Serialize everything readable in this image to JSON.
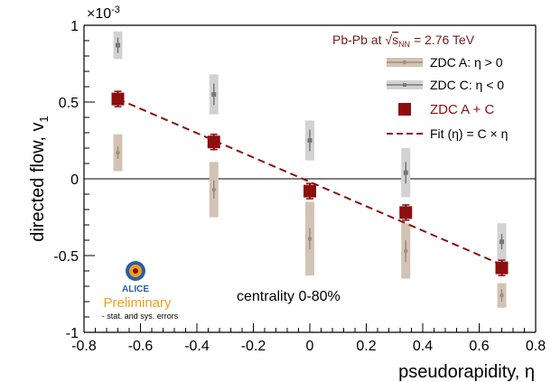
{
  "chart_data": {
    "type": "scatter",
    "xlabel": "pseudorapidity, η",
    "ylabel": "directed flow, v",
    "ylabel_sub": "1",
    "y_multiplier": "×10",
    "y_multiplier_exp": "-3",
    "xlim": [
      -0.8,
      0.8
    ],
    "ylim": [
      -1,
      1
    ],
    "x_ticks": [
      -0.8,
      -0.6,
      -0.4,
      -0.2,
      0,
      0.2,
      0.4,
      0.6,
      0.8
    ],
    "x_tick_labels": [
      "-0.8",
      "-0.6",
      "-0.4",
      "-0.2",
      "0",
      "0.2",
      "0.4",
      "0.6",
      "0.8"
    ],
    "y_ticks": [
      -1,
      -0.5,
      0,
      0.5,
      1
    ],
    "y_tick_labels": [
      "-1",
      "-0.5",
      "0",
      "0.5",
      "1"
    ],
    "zero_line": true,
    "grid": false,
    "legend_position": "top-right",
    "header": {
      "prefix": "Pb-Pb at ",
      "sqrt_sym": "√",
      "s": "s",
      "sub": "NN",
      "suffix": " = 2.76 TeV"
    },
    "legend": [
      {
        "key": "zdc_a",
        "label": "ZDC A:  η > 0"
      },
      {
        "key": "zdc_c",
        "label": "ZDC C:  η < 0"
      },
      {
        "key": "zdc_ac",
        "label": "ZDC A + C"
      },
      {
        "key": "fit",
        "label": "Fit (η)  =  C × η"
      }
    ],
    "series": [
      {
        "key": "zdc_a",
        "name": "ZDC A:  η > 0",
        "color": "#a48a79",
        "sys_color": "#d3c3b5",
        "points": [
          {
            "x": -0.68,
            "y": 0.17,
            "stat": 0.04,
            "sys": 0.12
          },
          {
            "x": -0.34,
            "y": -0.07,
            "stat": 0.06,
            "sys": 0.18
          },
          {
            "x": 0.0,
            "y": -0.39,
            "stat": 0.07,
            "sys": 0.24
          },
          {
            "x": 0.34,
            "y": -0.47,
            "stat": 0.07,
            "sys": 0.18
          },
          {
            "x": 0.68,
            "y": -0.76,
            "stat": 0.04,
            "sys": 0.08
          }
        ]
      },
      {
        "key": "zdc_c",
        "name": "ZDC C:  η < 0",
        "color": "#777777",
        "sys_color": "#d2d2d2",
        "points": [
          {
            "x": -0.68,
            "y": 0.87,
            "stat": 0.05,
            "sys": 0.09
          },
          {
            "x": -0.34,
            "y": 0.55,
            "stat": 0.07,
            "sys": 0.13
          },
          {
            "x": 0.0,
            "y": 0.25,
            "stat": 0.07,
            "sys": 0.13
          },
          {
            "x": 0.34,
            "y": 0.04,
            "stat": 0.07,
            "sys": 0.16
          },
          {
            "x": 0.68,
            "y": -0.41,
            "stat": 0.05,
            "sys": 0.12
          }
        ]
      },
      {
        "key": "zdc_ac",
        "name": "ZDC A + C",
        "color": "#8b0f0f",
        "points": [
          {
            "x": -0.68,
            "y": 0.52,
            "stat": 0.05
          },
          {
            "x": -0.34,
            "y": 0.24,
            "stat": 0.05
          },
          {
            "x": 0.0,
            "y": -0.08,
            "stat": 0.05
          },
          {
            "x": 0.34,
            "y": -0.22,
            "stat": 0.05
          },
          {
            "x": 0.68,
            "y": -0.58,
            "stat": 0.05
          }
        ]
      }
    ],
    "fit": {
      "name": "Fit (η)  =  C × η",
      "color": "#8b0f0f",
      "x": [
        -0.68,
        0.68
      ],
      "y": [
        0.52,
        -0.56
      ]
    },
    "annotations": {
      "centrality": "centrality 0-80%",
      "logo_text": "ALICE",
      "preliminary": "Preliminary",
      "errors_note": "- stat. and sys. errors"
    },
    "colors": {
      "accent": "#8b0f0f",
      "logo_blue": "#2a5ea8",
      "logo_orange": "#f0a020"
    }
  }
}
